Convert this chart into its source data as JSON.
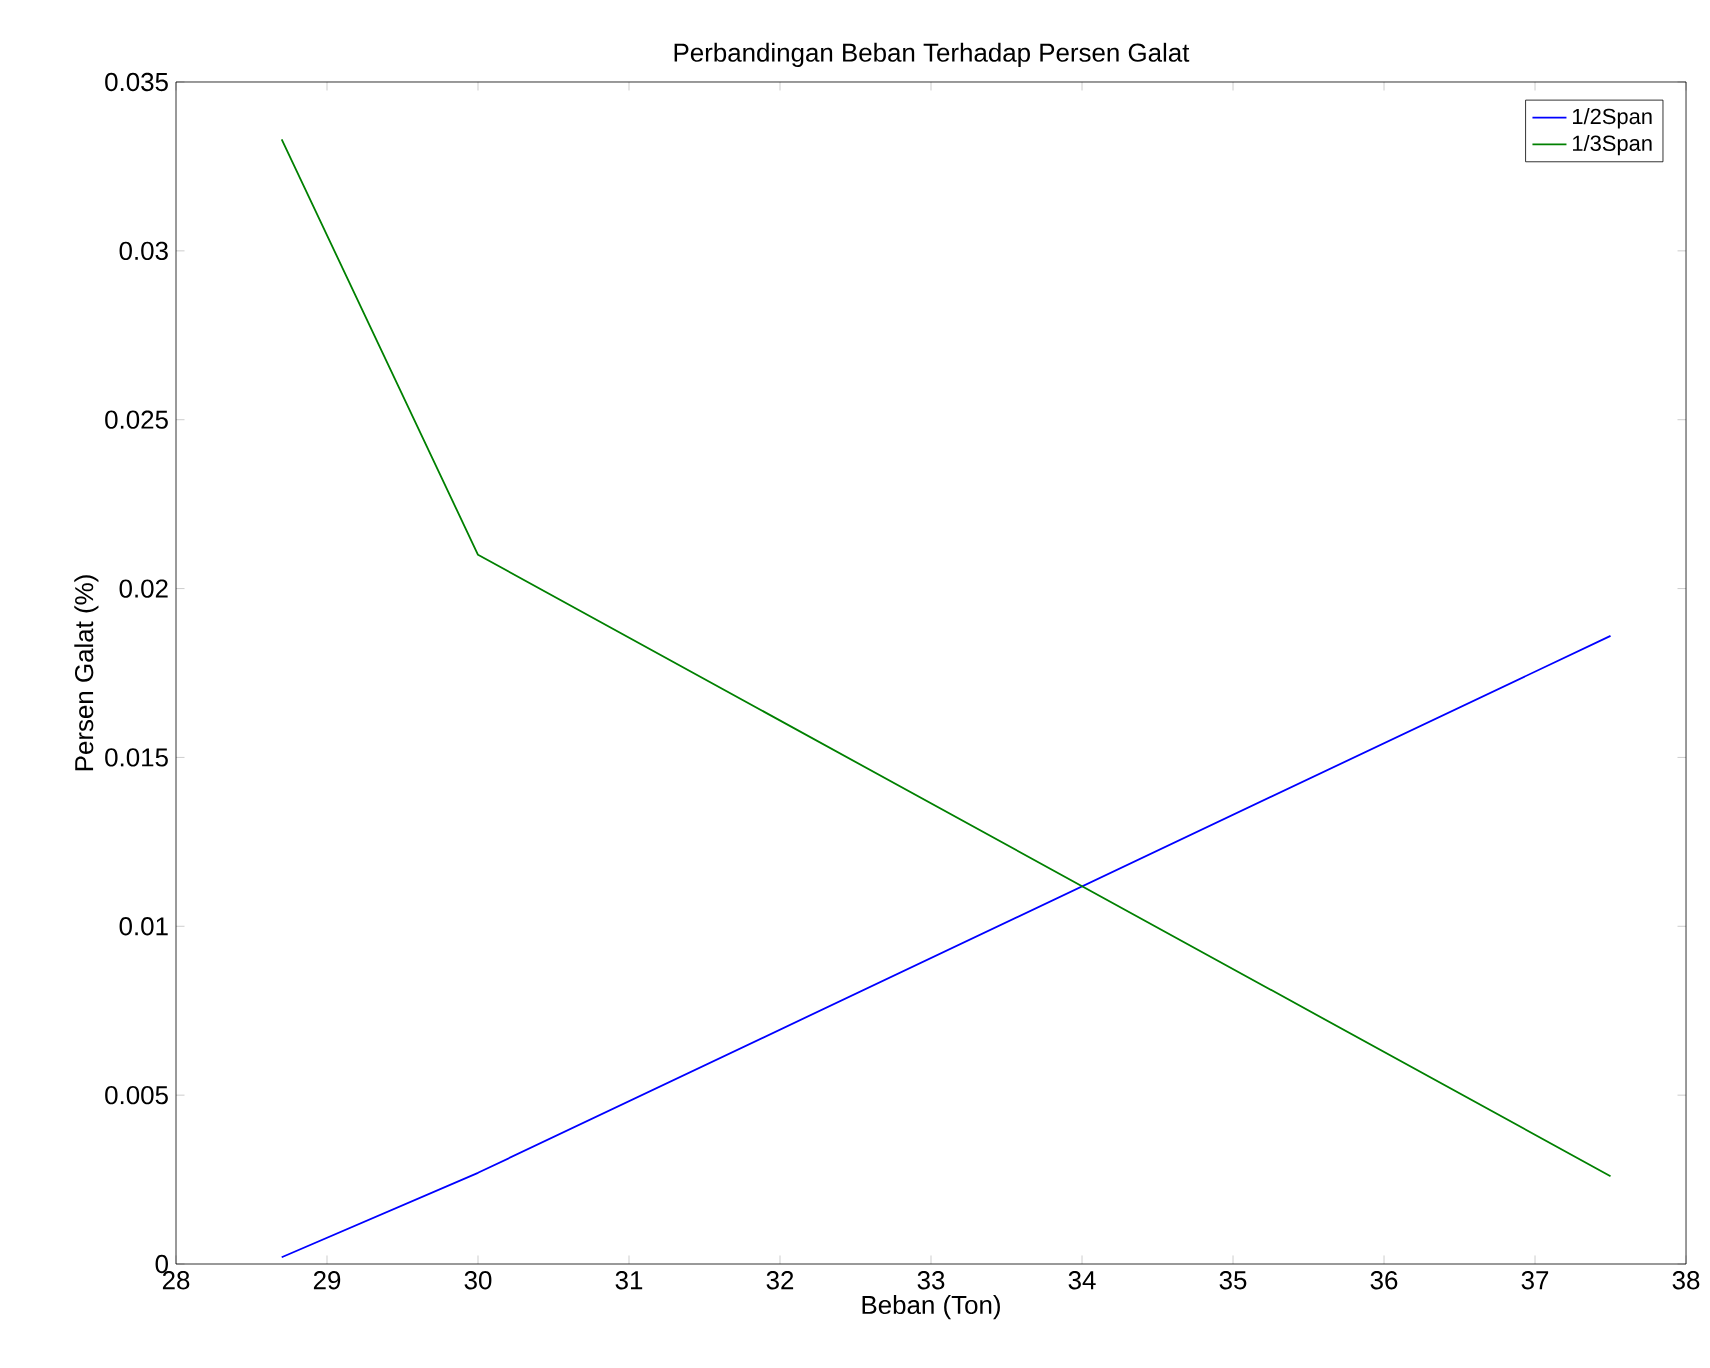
{
  "chart_data": {
    "type": "line",
    "title": "Perbandingan Beban Terhadap Persen Galat",
    "xlabel": "Beban (Ton)",
    "ylabel": "Persen Galat (%)",
    "xlim": [
      28,
      38
    ],
    "xticks": [
      28,
      29,
      30,
      31,
      32,
      33,
      34,
      35,
      36,
      37,
      38
    ],
    "ylim": [
      0,
      0.035
    ],
    "yticks": [
      0,
      0.005,
      0.01,
      0.015,
      0.02,
      0.025,
      0.03,
      0.035
    ],
    "x": [
      28.7,
      30,
      37.5
    ],
    "series": [
      {
        "name": "1/2Span",
        "color": "#0000ff",
        "values": [
          0.0002,
          0.0027,
          0.0186
        ]
      },
      {
        "name": "1/3Span",
        "color": "#008000",
        "values": [
          0.0333,
          0.021,
          0.0026
        ]
      }
    ],
    "legend": "top right",
    "grid": false,
    "marker": "none",
    "line_style": "solid"
  }
}
